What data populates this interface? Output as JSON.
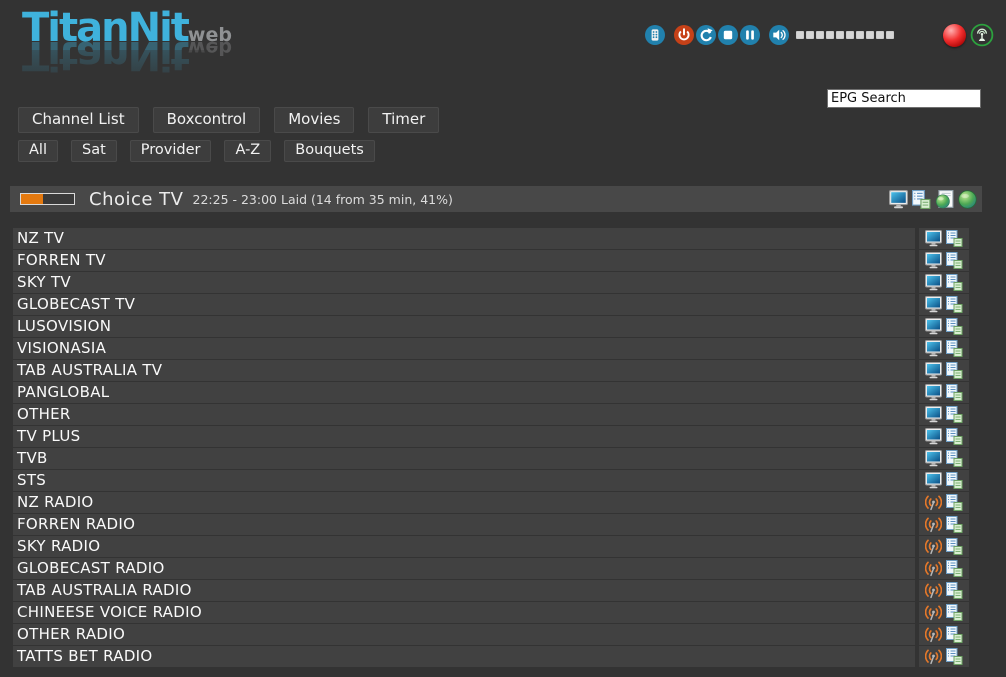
{
  "header": {
    "logo": {
      "title": "TitanNit",
      "subtitle": "web"
    },
    "controls": {
      "icons": [
        "remote-keypad",
        "power",
        "refresh",
        "stop",
        "pause",
        "speaker"
      ],
      "volume_segments": 10,
      "record_icon": "record-ball",
      "signal_icon": "antenna-signal"
    },
    "search": {
      "value": "EPG Search"
    }
  },
  "nav": {
    "tabs": [
      {
        "label": "Channel List"
      },
      {
        "label": "Boxcontrol"
      },
      {
        "label": "Movies"
      },
      {
        "label": "Timer"
      }
    ]
  },
  "filters": {
    "buttons": [
      {
        "label": "All"
      },
      {
        "label": "Sat"
      },
      {
        "label": "Provider"
      },
      {
        "label": "A-Z"
      },
      {
        "label": "Bouquets"
      }
    ]
  },
  "now_playing": {
    "channel_name": "Choice TV",
    "epg_info": "22:25 - 23:00 Laid (14 from 35 min, 41%)",
    "progress_percent": 41,
    "action_icons": [
      "tv-screen",
      "epg-list",
      "web-page",
      "globe"
    ]
  },
  "channel_list": {
    "rows": [
      {
        "name": "NZ TV",
        "type": "tv"
      },
      {
        "name": "FORREN TV",
        "type": "tv"
      },
      {
        "name": "SKY TV",
        "type": "tv"
      },
      {
        "name": "GLOBECAST TV",
        "type": "tv"
      },
      {
        "name": "LUSOVISION",
        "type": "tv"
      },
      {
        "name": "VISIONASIA",
        "type": "tv"
      },
      {
        "name": "TAB AUSTRALIA TV",
        "type": "tv"
      },
      {
        "name": "PANGLOBAL",
        "type": "tv"
      },
      {
        "name": "OTHER",
        "type": "tv"
      },
      {
        "name": "TV PLUS",
        "type": "tv"
      },
      {
        "name": "TVB",
        "type": "tv"
      },
      {
        "name": "STS",
        "type": "tv"
      },
      {
        "name": "NZ RADIO",
        "type": "radio"
      },
      {
        "name": "FORREN RADIO",
        "type": "radio"
      },
      {
        "name": "SKY RADIO",
        "type": "radio"
      },
      {
        "name": "GLOBECAST RADIO",
        "type": "radio"
      },
      {
        "name": "TAB AUSTRALIA RADIO",
        "type": "radio"
      },
      {
        "name": "CHINEESE VOICE RADIO",
        "type": "radio"
      },
      {
        "name": "OTHER RADIO",
        "type": "radio"
      },
      {
        "name": "TATTS BET RADIO",
        "type": "radio"
      }
    ]
  },
  "colors": {
    "accent_cyan": "#3fb2dc",
    "progress_orange": "#e4790f",
    "row_background": "#414141",
    "page_background": "#333333",
    "control_blue": "#2181ad",
    "power_red": "#c64118",
    "record_red": "#f23030",
    "signal_green": "#2ca23e"
  }
}
